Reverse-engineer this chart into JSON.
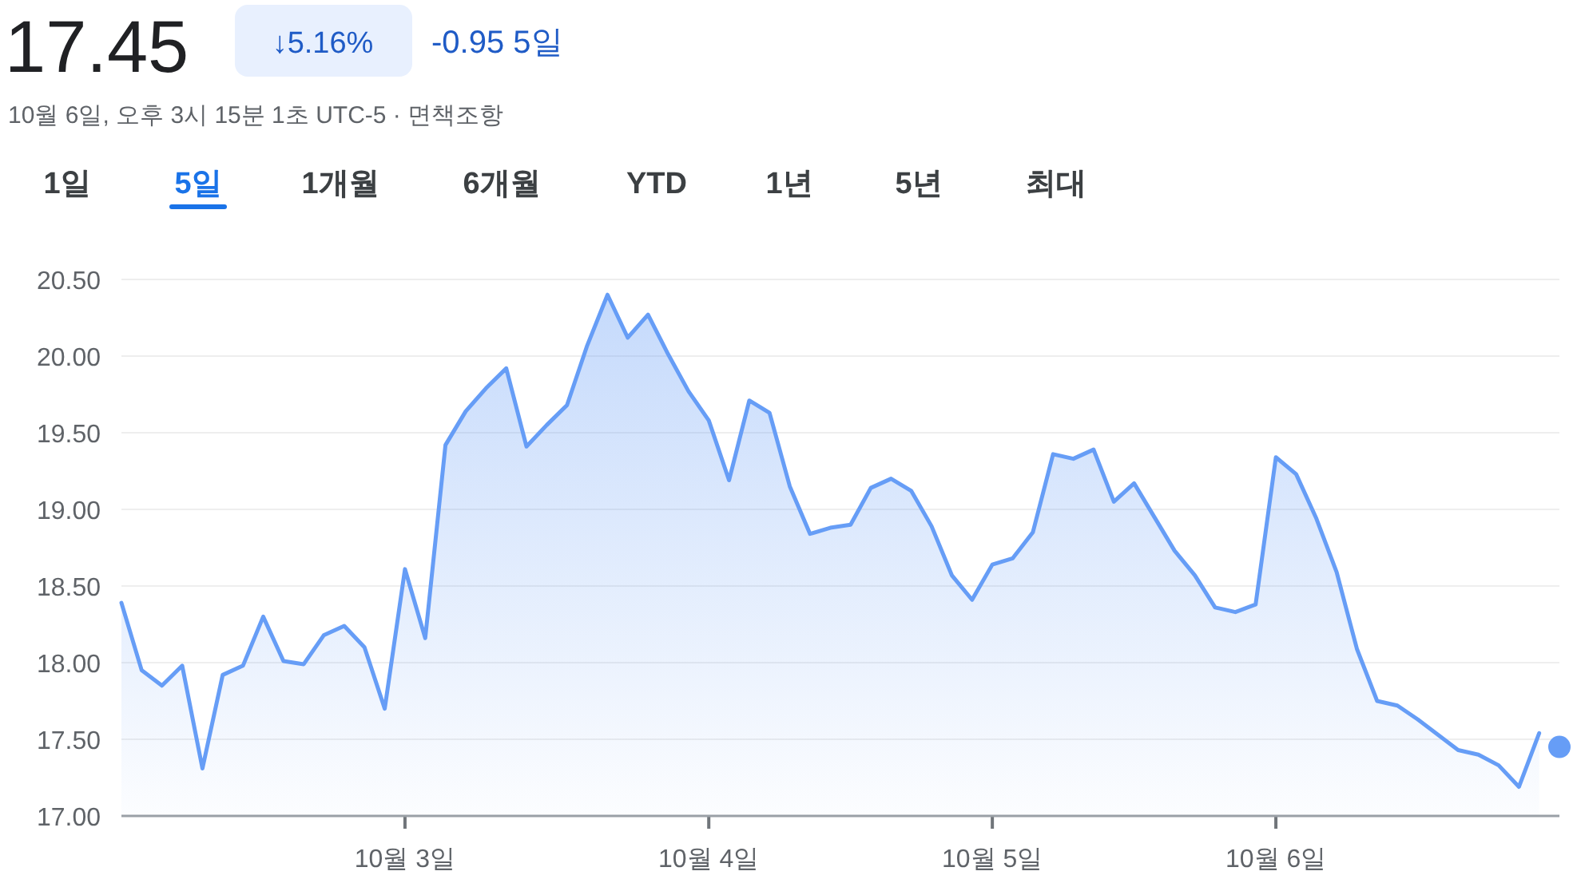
{
  "chart_data": {
    "type": "area",
    "title": "17.45",
    "subtitle": "10월 6일, 오후 3시 15분 1초 UTC-5 · 면책조항",
    "annotations": [
      "↓5.16%",
      "-0.95 5일",
      "1일",
      "5일",
      "1개월",
      "6개월",
      "YTD",
      "1년",
      "5년",
      "최대"
    ],
    "categories": [
      null,
      null,
      null,
      null,
      null,
      null,
      null,
      null,
      null,
      null,
      null,
      null,
      null,
      null,
      "10월 3일",
      null,
      null,
      null,
      null,
      null,
      null,
      null,
      null,
      null,
      null,
      null,
      null,
      null,
      null,
      "10월 4일",
      null,
      null,
      null,
      null,
      null,
      null,
      null,
      null,
      null,
      null,
      null,
      null,
      null,
      "10월 5일",
      null,
      null,
      null,
      null,
      null,
      null,
      null,
      null,
      null,
      null,
      null,
      null,
      null,
      "10월 6일",
      null,
      null,
      null,
      null,
      null,
      null,
      null,
      null,
      null,
      null,
      null,
      null,
      null,
      null
    ],
    "series": [
      {
        "color": "#669df6",
        "values": [
          18.39,
          17.95,
          17.85,
          17.98,
          17.31,
          17.92,
          17.98,
          18.3,
          18.01,
          17.99,
          18.18,
          18.24,
          18.1,
          17.7,
          18.61,
          18.16,
          19.42,
          19.64,
          19.79,
          19.92,
          19.41,
          19.55,
          19.68,
          20.07,
          20.4,
          20.12,
          20.27,
          20.01,
          19.77,
          19.58,
          19.19,
          19.71,
          19.63,
          19.15,
          18.84,
          18.88,
          18.9,
          19.14,
          19.2,
          19.12,
          18.89,
          18.57,
          18.41,
          18.64,
          18.68,
          18.85,
          19.36,
          19.33,
          19.39,
          19.05,
          19.17,
          18.95,
          18.73,
          18.57,
          18.36,
          18.33,
          18.38,
          19.34,
          19.23,
          18.94,
          18.59,
          18.09,
          17.75,
          17.72,
          17.63,
          17.53,
          17.43,
          17.4,
          17.33,
          17.19,
          17.54,
          null
        ]
      },
      {
        "type": "scatter",
        "color": "#669df6",
        "values": [
          null,
          null,
          null,
          null,
          null,
          null,
          null,
          null,
          null,
          null,
          null,
          null,
          null,
          null,
          null,
          null,
          null,
          null,
          null,
          null,
          null,
          null,
          null,
          null,
          null,
          null,
          null,
          null,
          null,
          null,
          null,
          null,
          null,
          null,
          null,
          null,
          null,
          null,
          null,
          null,
          null,
          null,
          null,
          null,
          null,
          null,
          null,
          null,
          null,
          null,
          null,
          null,
          null,
          null,
          null,
          null,
          null,
          null,
          null,
          null,
          null,
          null,
          null,
          null,
          null,
          null,
          null,
          null,
          null,
          null,
          null,
          17.45
        ]
      }
    ],
    "ylim": [
      17,
      20.5
    ],
    "yticks": [
      {
        "value": 17,
        "label": "17.00"
      },
      {
        "value": 17.5,
        "label": "17.50"
      },
      {
        "value": 18,
        "label": "18.00"
      },
      {
        "value": 18.5,
        "label": "18.50"
      },
      {
        "value": 19,
        "label": "19.00"
      },
      {
        "value": 19.5,
        "label": "19.50"
      },
      {
        "value": 20,
        "label": "20.00"
      },
      {
        "value": 20.5,
        "label": "20.50"
      }
    ],
    "grid": "y"
  }
}
